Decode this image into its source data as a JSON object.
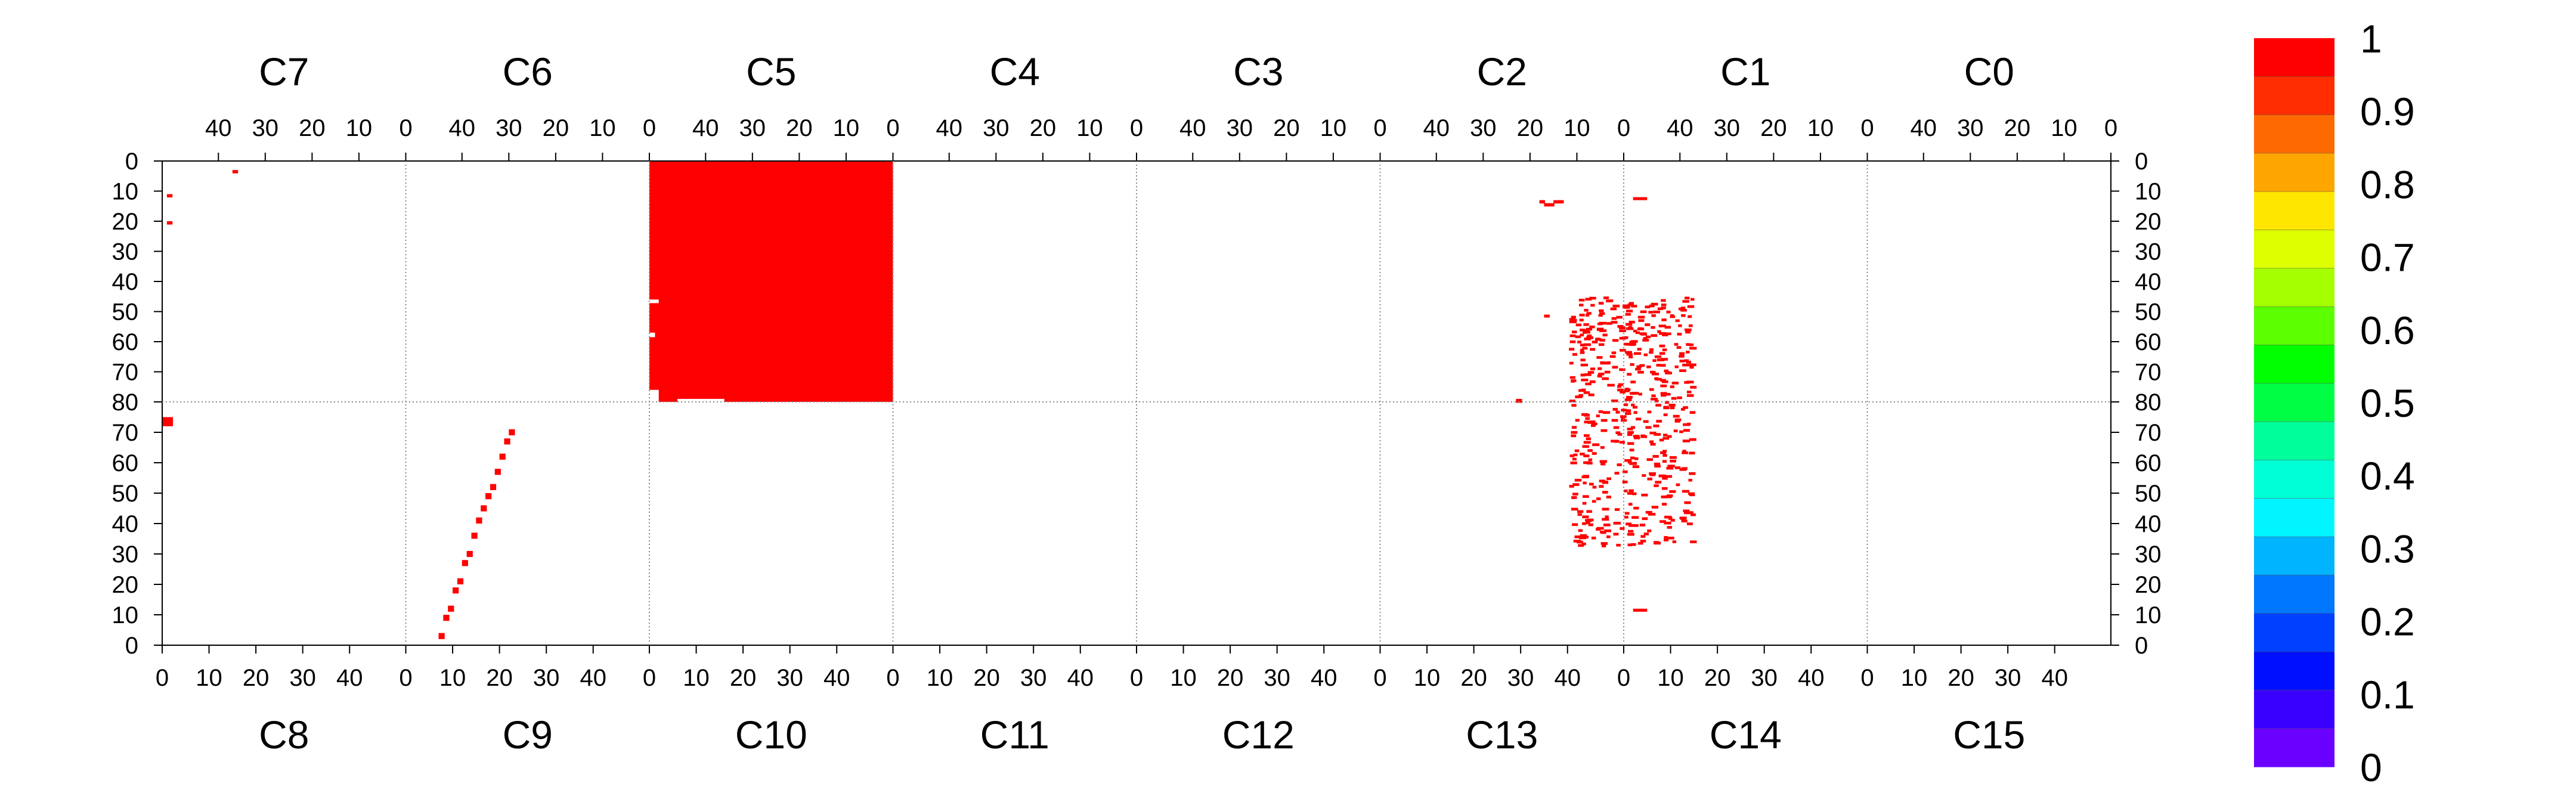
{
  "chart_data": {
    "type": "heatmap",
    "title": "",
    "top_panels": [
      "C7",
      "C6",
      "C5",
      "C4",
      "C3",
      "C2",
      "C1",
      "C0"
    ],
    "bottom_panels": [
      "C8",
      "C9",
      "C10",
      "C11",
      "C12",
      "C13",
      "C14",
      "C15"
    ],
    "panel_axis": {
      "range": [
        0,
        52
      ],
      "top_ticks": [
        40,
        30,
        20,
        10,
        0
      ],
      "bottom_ticks": [
        0,
        10,
        20,
        30,
        40
      ],
      "top_axis_reversed": true
    },
    "y_axis": {
      "range_per_half": [
        0,
        80
      ],
      "top_half_ticks": [
        0,
        10,
        20,
        30,
        40,
        50,
        60,
        70,
        80
      ],
      "bottom_half_ticks": [
        0,
        10,
        20,
        30,
        40,
        50,
        60,
        70
      ],
      "top_half_inverted": true
    },
    "grid": "dotted panel separators",
    "colorbar": {
      "min": 0,
      "max": 1,
      "labels": [
        "1",
        "0.9",
        "0.8",
        "0.7",
        "0.6",
        "0.5",
        "0.4",
        "0.3",
        "0.2",
        "0.1",
        "0"
      ],
      "colors": [
        "#ff0000",
        "#ff2d00",
        "#ff6a00",
        "#ffa500",
        "#ffe600",
        "#ddff00",
        "#a5ff00",
        "#5cff00",
        "#00ff00",
        "#00ff44",
        "#00ff9a",
        "#00ffd5",
        "#00f5ff",
        "#00b4ff",
        "#0077ff",
        "#0040ff",
        "#0010ff",
        "#3a00ff",
        "#6a00ff"
      ]
    },
    "regions": [
      {
        "panel": "C5",
        "x_range": [
          0,
          52
        ],
        "y_range": [
          0,
          80
        ],
        "value": 1,
        "note": "fully filled"
      },
      {
        "panel": "C7",
        "points": [
          [
            36,
            3
          ],
          [
            50,
            11
          ],
          [
            50,
            20
          ]
        ],
        "value": 1
      },
      {
        "panel": "C8",
        "points": [
          [
            0,
            72
          ],
          [
            1,
            72
          ],
          [
            0,
            73
          ],
          [
            1,
            73
          ]
        ],
        "value": 1
      },
      {
        "panel": "C9",
        "points": [
          [
            7,
            2
          ],
          [
            8,
            8
          ],
          [
            9,
            11
          ],
          [
            10,
            17
          ],
          [
            11,
            20
          ],
          [
            12,
            26
          ],
          [
            13,
            29
          ],
          [
            14,
            35
          ],
          [
            15,
            40
          ],
          [
            16,
            44
          ],
          [
            17,
            48
          ],
          [
            18,
            51
          ],
          [
            19,
            56
          ],
          [
            20,
            61
          ],
          [
            21,
            66
          ],
          [
            22,
            69
          ]
        ],
        "value": 1
      },
      {
        "panel": "C2",
        "points": [
          [
            13,
            13
          ],
          [
            14,
            13
          ],
          [
            15,
            14
          ],
          [
            16,
            14
          ],
          [
            17,
            13
          ]
        ],
        "value": 1
      },
      {
        "panel": "C2/C1/C13/C14",
        "description": "scattered hits around shared column 0",
        "value": 1
      }
    ]
  }
}
